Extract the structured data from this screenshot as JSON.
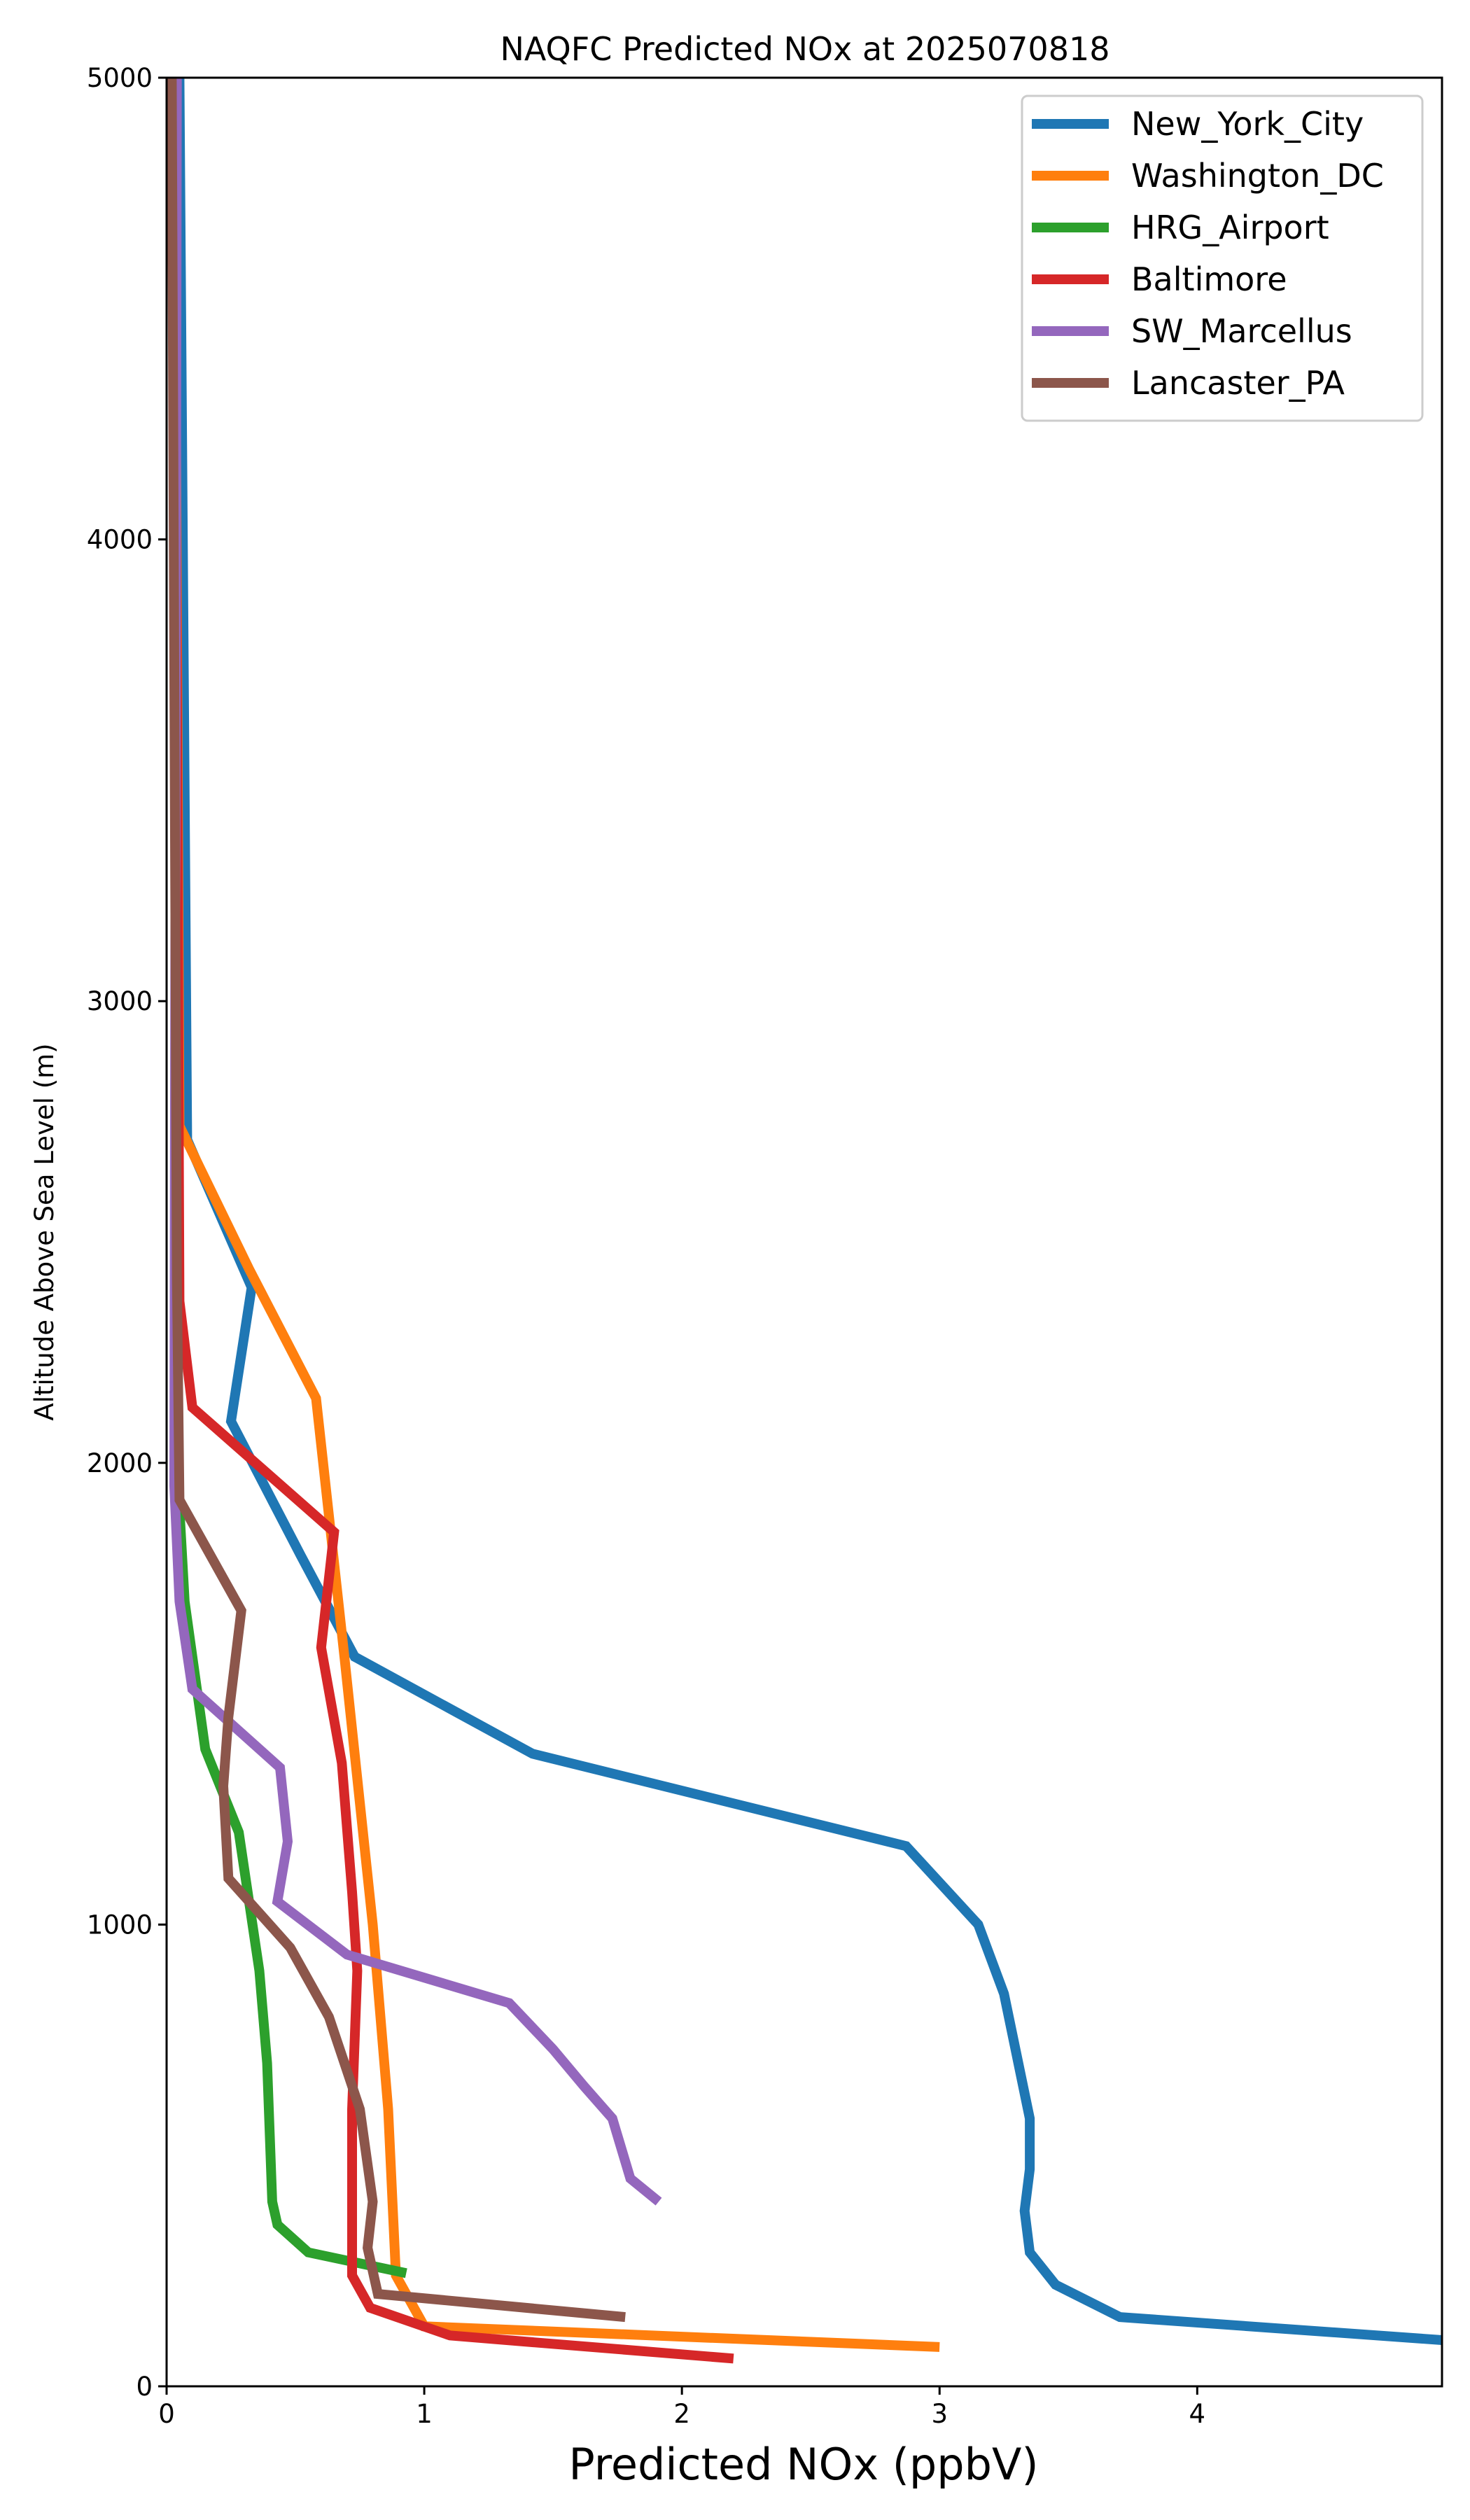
{
  "chart_data": {
    "type": "line",
    "title": "NAQFC Predicted NOx at 2025070818",
    "xlabel": "Predicted NOx (ppbV)",
    "ylabel": "Altitude Above Sea Level (m)",
    "xlim": [
      0,
      4.95
    ],
    "ylim": [
      0,
      5000
    ],
    "xticks": [
      0,
      1,
      2,
      3,
      4
    ],
    "yticks": [
      0,
      1000,
      2000,
      3000,
      4000,
      5000
    ],
    "grid": false,
    "legend_position": "top-right",
    "series": [
      {
        "name": "New_York_City",
        "color": "#1f77b4",
        "points": [
          [
            4.95,
            100
          ],
          [
            3.7,
            150
          ],
          [
            3.45,
            220
          ],
          [
            3.35,
            290
          ],
          [
            3.33,
            380
          ],
          [
            3.35,
            470
          ],
          [
            3.35,
            580
          ],
          [
            3.25,
            850
          ],
          [
            3.15,
            1000
          ],
          [
            2.87,
            1170
          ],
          [
            1.42,
            1370
          ],
          [
            0.73,
            1580
          ],
          [
            0.52,
            1800
          ],
          [
            0.25,
            2090
          ],
          [
            0.33,
            2380
          ],
          [
            0.08,
            2700
          ],
          [
            0.05,
            5000
          ]
        ]
      },
      {
        "name": "Washington_DC",
        "color": "#ff7f0e",
        "points": [
          [
            3.0,
            85
          ],
          [
            1.0,
            130
          ],
          [
            0.89,
            240
          ],
          [
            0.86,
            600
          ],
          [
            0.8,
            1000
          ],
          [
            0.69,
            1580
          ],
          [
            0.58,
            2140
          ],
          [
            0.32,
            2420
          ],
          [
            0.05,
            2730
          ],
          [
            0.03,
            5000
          ]
        ]
      },
      {
        "name": "HRG_Airport",
        "color": "#2ca02c",
        "points": [
          [
            0.93,
            245
          ],
          [
            0.55,
            290
          ],
          [
            0.43,
            350
          ],
          [
            0.41,
            400
          ],
          [
            0.39,
            700
          ],
          [
            0.36,
            900
          ],
          [
            0.28,
            1200
          ],
          [
            0.15,
            1380
          ],
          [
            0.07,
            1700
          ],
          [
            0.04,
            2000
          ],
          [
            0.03,
            5000
          ]
        ]
      },
      {
        "name": "Baltimore",
        "color": "#d62728",
        "points": [
          [
            2.2,
            60
          ],
          [
            1.1,
            110
          ],
          [
            0.79,
            170
          ],
          [
            0.72,
            240
          ],
          [
            0.72,
            600
          ],
          [
            0.74,
            900
          ],
          [
            0.72,
            1070
          ],
          [
            0.68,
            1350
          ],
          [
            0.6,
            1600
          ],
          [
            0.65,
            1850
          ],
          [
            0.1,
            2120
          ],
          [
            0.05,
            2350
          ],
          [
            0.03,
            5000
          ]
        ]
      },
      {
        "name": "SW_Marcellus",
        "color": "#9467bd",
        "points": [
          [
            1.91,
            400
          ],
          [
            1.8,
            450
          ],
          [
            1.73,
            580
          ],
          [
            1.62,
            650
          ],
          [
            1.5,
            730
          ],
          [
            1.33,
            830
          ],
          [
            0.7,
            935
          ],
          [
            0.43,
            1050
          ],
          [
            0.47,
            1180
          ],
          [
            0.44,
            1340
          ],
          [
            0.1,
            1510
          ],
          [
            0.05,
            1700
          ],
          [
            0.03,
            1950
          ],
          [
            0.04,
            5000
          ]
        ]
      },
      {
        "name": "Lancaster_PA",
        "color": "#8c564b",
        "points": [
          [
            1.78,
            150
          ],
          [
            0.82,
            200
          ],
          [
            0.78,
            300
          ],
          [
            0.8,
            400
          ],
          [
            0.75,
            600
          ],
          [
            0.63,
            800
          ],
          [
            0.48,
            950
          ],
          [
            0.24,
            1100
          ],
          [
            0.22,
            1300
          ],
          [
            0.24,
            1450
          ],
          [
            0.29,
            1680
          ],
          [
            0.05,
            1920
          ],
          [
            0.04,
            2400
          ],
          [
            0.02,
            5000
          ]
        ]
      }
    ]
  }
}
